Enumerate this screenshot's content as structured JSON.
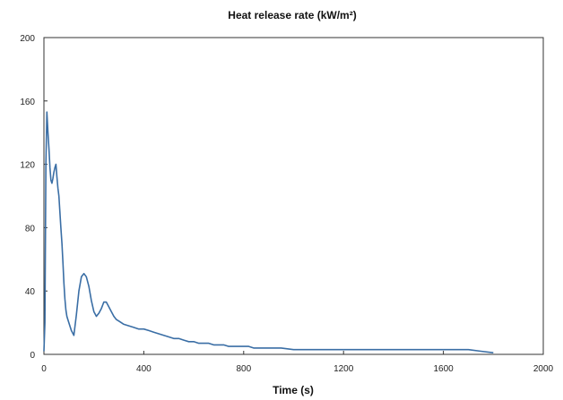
{
  "chart_data": {
    "type": "line",
    "title": "Heat release  rate (kW/m²)",
    "xlabel": "Time (s)",
    "ylabel": "",
    "xlim": [
      0,
      2000
    ],
    "ylim": [
      0,
      200
    ],
    "xticks": [
      0,
      400,
      800,
      1200,
      1600,
      2000
    ],
    "yticks": [
      0,
      40,
      80,
      120,
      160,
      200
    ],
    "xtick_labels": [
      "0",
      "400",
      "800",
      "1200",
      "1600",
      "2000"
    ],
    "ytick_labels": [
      "0",
      "40",
      "80",
      "120",
      "160",
      "200"
    ],
    "grid": false,
    "legend": "none",
    "colors": {
      "line": "#3a6ea5",
      "frame": "#333333"
    },
    "series": [
      {
        "x": [
          0,
          4,
          8,
          12,
          16,
          20,
          24,
          28,
          32,
          36,
          40,
          44,
          48,
          52,
          56,
          60,
          64,
          68,
          72,
          76,
          80,
          84,
          88,
          92,
          96,
          100,
          110,
          120,
          130,
          140,
          150,
          160,
          170,
          180,
          190,
          200,
          210,
          220,
          230,
          240,
          250,
          260,
          270,
          280,
          290,
          300,
          310,
          320,
          340,
          360,
          380,
          400,
          420,
          440,
          460,
          480,
          500,
          520,
          540,
          560,
          580,
          600,
          620,
          640,
          660,
          680,
          700,
          720,
          740,
          760,
          780,
          800,
          820,
          840,
          860,
          880,
          900,
          950,
          1000,
          1050,
          1100,
          1150,
          1200,
          1250,
          1300,
          1350,
          1400,
          1450,
          1500,
          1550,
          1600,
          1650,
          1700,
          1750,
          1800
        ],
        "y": [
          2,
          20,
          120,
          153,
          140,
          130,
          118,
          110,
          108,
          111,
          115,
          118,
          120,
          112,
          105,
          100,
          90,
          80,
          70,
          58,
          45,
          35,
          28,
          24,
          22,
          20,
          15,
          12,
          25,
          40,
          49,
          51,
          49,
          43,
          34,
          27,
          24,
          26,
          29,
          33,
          33,
          30,
          27,
          24,
          22,
          21,
          20,
          19,
          18,
          17,
          16,
          16,
          15,
          14,
          13,
          12,
          11,
          10,
          10,
          9,
          8,
          8,
          7,
          7,
          7,
          6,
          6,
          6,
          5,
          5,
          5,
          5,
          5,
          4,
          4,
          4,
          4,
          4,
          3,
          3,
          3,
          3,
          3,
          3,
          3,
          3,
          3,
          3,
          3,
          3,
          3,
          3,
          3,
          2,
          1
        ]
      }
    ]
  }
}
